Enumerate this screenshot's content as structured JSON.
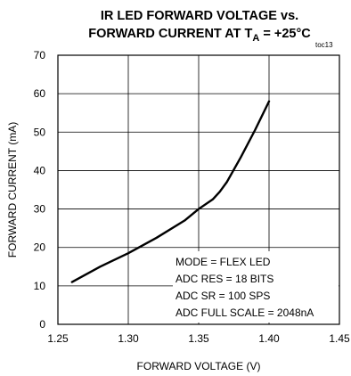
{
  "chart_data": {
    "type": "line",
    "title_line1": "IR LED FORWARD VOLTAGE vs.",
    "title_line2_prefix": "FORWARD CURRENT AT T",
    "title_line2_sub": "A",
    "title_line2_suffix": " = +25°C",
    "figure_tag": "toc13",
    "xlabel": "FORWARD VOLTAGE (V)",
    "ylabel": "FORWARD CURRENT (mA)",
    "xlim": [
      1.25,
      1.45
    ],
    "ylim": [
      0,
      70
    ],
    "x_ticks": [
      "1.25",
      "1.30",
      "1.35",
      "1.40",
      "1.45"
    ],
    "x_tick_values": [
      1.25,
      1.3,
      1.35,
      1.4,
      1.45
    ],
    "y_ticks": [
      "0",
      "10",
      "20",
      "30",
      "40",
      "50",
      "60",
      "70"
    ],
    "y_tick_values": [
      0,
      10,
      20,
      30,
      40,
      50,
      60,
      70
    ],
    "grid": true,
    "annotations": [
      "MODE = FLEX LED",
      "ADC RES = 18 BITS",
      "ADC SR = 100 SPS",
      "ADC FULL SCALE = 2048nA"
    ],
    "series": [
      {
        "x": [
          1.26,
          1.28,
          1.3,
          1.32,
          1.34,
          1.35,
          1.36,
          1.365,
          1.37,
          1.38,
          1.39,
          1.4
        ],
        "y": [
          11,
          15,
          18.5,
          22.5,
          27,
          30,
          32.5,
          34.5,
          37,
          43.5,
          50.5,
          58
        ]
      }
    ],
    "line_color": "#000000"
  }
}
